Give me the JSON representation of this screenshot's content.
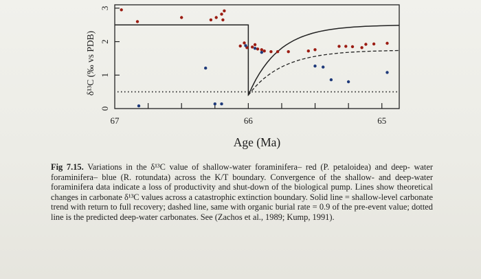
{
  "chart_data": {
    "type": "scatter",
    "xlabel": "Age (Ma)",
    "ylabel": "δ¹³C (‰ vs PDB)",
    "xlim": [
      67.0,
      64.87
    ],
    "ylim": [
      0,
      3.1
    ],
    "x_ticks": [
      "67",
      "66",
      "65"
    ],
    "y_ticks": [
      "0",
      "1",
      "2",
      "3"
    ],
    "grid": false,
    "series": [
      {
        "marker": "red dots",
        "color": "#9b1c12",
        "points": [
          [
            66.95,
            2.95
          ],
          [
            66.83,
            2.6
          ],
          [
            66.5,
            2.72
          ],
          [
            66.28,
            2.65
          ],
          [
            66.24,
            2.72
          ],
          [
            66.2,
            2.82
          ],
          [
            66.19,
            2.65
          ],
          [
            66.18,
            2.92
          ],
          [
            66.06,
            1.87
          ],
          [
            66.03,
            1.96
          ],
          [
            66.01,
            1.82
          ],
          [
            65.97,
            1.84
          ],
          [
            65.95,
            1.91
          ],
          [
            65.93,
            1.78
          ],
          [
            65.9,
            1.76
          ],
          [
            65.88,
            1.72
          ],
          [
            65.83,
            1.7
          ],
          [
            65.78,
            1.7
          ],
          [
            65.7,
            1.7
          ],
          [
            65.55,
            1.72
          ],
          [
            65.5,
            1.76
          ],
          [
            65.32,
            1.86
          ],
          [
            65.27,
            1.86
          ],
          [
            65.22,
            1.85
          ],
          [
            65.15,
            1.82
          ],
          [
            65.12,
            1.92
          ],
          [
            65.06,
            1.93
          ],
          [
            64.96,
            1.95
          ]
        ]
      },
      {
        "marker": "blue dots",
        "color": "#1f3a7a",
        "points": [
          [
            66.82,
            0.08
          ],
          [
            66.32,
            1.21
          ],
          [
            66.25,
            0.14
          ],
          [
            66.2,
            0.14
          ],
          [
            66.02,
            1.88
          ],
          [
            65.95,
            1.8
          ],
          [
            65.9,
            1.68
          ],
          [
            65.5,
            1.27
          ],
          [
            65.44,
            1.24
          ],
          [
            65.38,
            0.86
          ],
          [
            65.25,
            0.8
          ],
          [
            64.96,
            1.08
          ]
        ]
      }
    ],
    "lines": [
      {
        "style": "solid",
        "description": "shallow-level carbonate trend with return to full recovery"
      },
      {
        "style": "dashed",
        "description": "organic burial rate = 0.9 of the pre-event value"
      },
      {
        "style": "dotted",
        "description": "predicted deep-water carbonates"
      }
    ]
  },
  "caption": {
    "label": "Fig 7.15.",
    "lines": [
      "Variations in the δ¹³C value of shallow-water foraminifera– red (P. petaloidea) and deep-",
      "water foraminifera– blue (R. rotundata) across the K/T boundary. Convergence of the shallow- and",
      "deep-water foraminifera data indicate a loss of productivity and shut-down of the biological pump.",
      "Lines show theoretical changes in carbonate δ¹³C values across a catastrophic extinction boundary.",
      "Solid line = shallow-level carbonate trend with return to full recovery; dashed line, same with organic",
      "burial rate = 0.9 of the pre-event value; dotted line is the predicted deep-water carbonates. See (Zachos",
      "et al., 1989; Kump, 1991)."
    ]
  }
}
